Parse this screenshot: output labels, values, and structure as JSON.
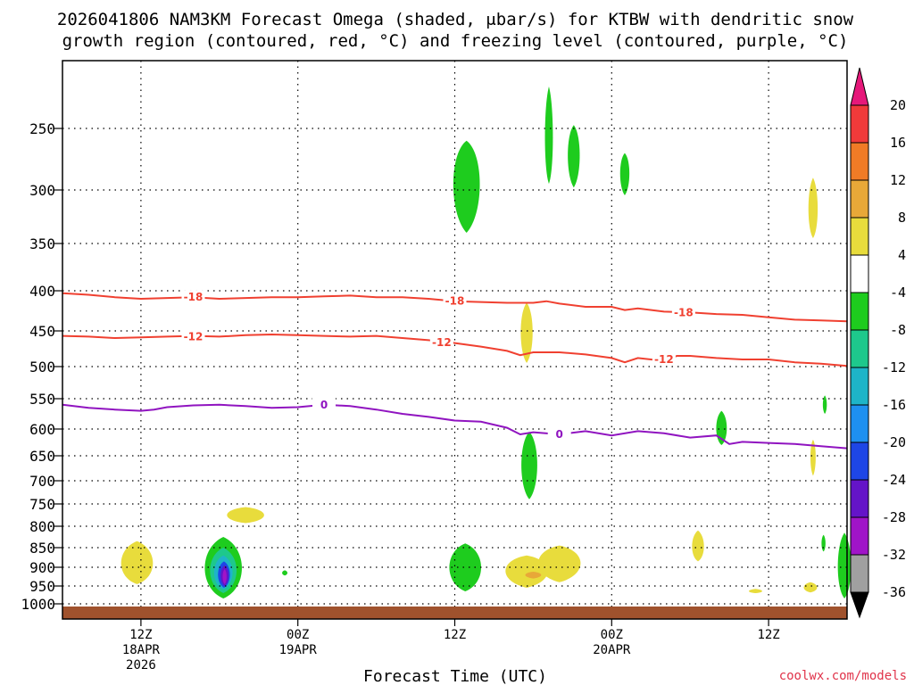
{
  "chart_data": {
    "type": "time-height cross section",
    "title_line1": "2026041806 NAM3KM Forecast Omega (shaded, μbar/s) for KTBW with dendritic snow",
    "title_line2": "growth region (contoured, red, °C) and freezing level (contoured, purple, °C)",
    "xlabel": "Forecast Time (UTC)",
    "credit": "coolwx.com/models",
    "y_ticks": [
      250,
      300,
      350,
      400,
      450,
      500,
      550,
      600,
      650,
      700,
      750,
      800,
      850,
      900,
      950,
      1000
    ],
    "x_ticks": [
      {
        "hour": 6,
        "l1": "12Z",
        "l2": "18APR",
        "l3": "2026"
      },
      {
        "hour": 18,
        "l1": "00Z",
        "l2": "19APR",
        "l3": ""
      },
      {
        "hour": 30,
        "l1": "12Z",
        "l2": "",
        "l3": ""
      },
      {
        "hour": 42,
        "l1": "00Z",
        "l2": "20APR",
        "l3": ""
      },
      {
        "hour": 54,
        "l1": "12Z",
        "l2": "",
        "l3": ""
      }
    ],
    "colorbar": {
      "labels": [
        "20",
        "16",
        "12",
        "8",
        "4",
        "-4",
        "-8",
        "-12",
        "-16",
        "-20",
        "-24",
        "-28",
        "-32",
        "-36"
      ],
      "bands": [
        {
          "lo": 16,
          "hi": 20,
          "color": "#f03a3a"
        },
        {
          "lo": 12,
          "hi": 16,
          "color": "#f07b26"
        },
        {
          "lo": 8,
          "hi": 12,
          "color": "#e8a838"
        },
        {
          "lo": 4,
          "hi": 8,
          "color": "#e8dc3c"
        },
        {
          "lo": -4,
          "hi": 4,
          "color": "#ffffff"
        },
        {
          "lo": -8,
          "hi": -4,
          "color": "#1ecc1e"
        },
        {
          "lo": -12,
          "hi": -8,
          "color": "#1ec88c"
        },
        {
          "lo": -16,
          "hi": -12,
          "color": "#1eb4c8"
        },
        {
          "lo": -20,
          "hi": -16,
          "color": "#1e90f0"
        },
        {
          "lo": -24,
          "hi": -20,
          "color": "#1e46e6"
        },
        {
          "lo": -28,
          "hi": -24,
          "color": "#6414c8"
        },
        {
          "lo": -32,
          "hi": -28,
          "color": "#a014c8"
        },
        {
          "lo": -36,
          "hi": -32,
          "color": "#a0a0a0"
        }
      ],
      "top_color": "#e6187a",
      "bottom_color": "#000000"
    },
    "contours": [
      {
        "value": "-18",
        "color": "#f04030",
        "points": [
          [
            0,
            403
          ],
          [
            2,
            405
          ],
          [
            4,
            408
          ],
          [
            6,
            410
          ],
          [
            8,
            409
          ],
          [
            10,
            408
          ],
          [
            12,
            410
          ],
          [
            14,
            409
          ],
          [
            16,
            408
          ],
          [
            18,
            408
          ],
          [
            20,
            407
          ],
          [
            22,
            406
          ],
          [
            24,
            408
          ],
          [
            26,
            408
          ],
          [
            28,
            410
          ],
          [
            30,
            413
          ],
          [
            32,
            414
          ],
          [
            34,
            415
          ],
          [
            36,
            415
          ],
          [
            37,
            413
          ],
          [
            38,
            416
          ],
          [
            40,
            420
          ],
          [
            42,
            420
          ],
          [
            43,
            424
          ],
          [
            44,
            422
          ],
          [
            46,
            426
          ],
          [
            48,
            427
          ],
          [
            50,
            429
          ],
          [
            52,
            430
          ],
          [
            54,
            433
          ],
          [
            56,
            436
          ],
          [
            58,
            437
          ],
          [
            60,
            438
          ]
        ],
        "labels": [
          [
            10,
            408
          ],
          [
            30,
            413
          ],
          [
            47.5,
            427
          ]
        ]
      },
      {
        "value": "-12",
        "color": "#f04030",
        "points": [
          [
            0,
            457
          ],
          [
            2,
            458
          ],
          [
            4,
            460
          ],
          [
            6,
            459
          ],
          [
            8,
            458
          ],
          [
            10,
            457
          ],
          [
            12,
            458
          ],
          [
            14,
            456
          ],
          [
            16,
            455
          ],
          [
            18,
            456
          ],
          [
            20,
            457
          ],
          [
            22,
            458
          ],
          [
            24,
            457
          ],
          [
            26,
            460
          ],
          [
            28,
            463
          ],
          [
            30,
            467
          ],
          [
            32,
            472
          ],
          [
            34,
            478
          ],
          [
            35,
            484
          ],
          [
            36,
            480
          ],
          [
            38,
            480
          ],
          [
            40,
            483
          ],
          [
            42,
            488
          ],
          [
            43,
            494
          ],
          [
            44,
            488
          ],
          [
            46,
            492
          ],
          [
            47,
            485
          ],
          [
            48,
            485
          ],
          [
            50,
            488
          ],
          [
            52,
            490
          ],
          [
            54,
            490
          ],
          [
            56,
            494
          ],
          [
            58,
            496
          ],
          [
            60,
            499
          ]
        ],
        "labels": [
          [
            10,
            458
          ],
          [
            29,
            466
          ],
          [
            46,
            490
          ]
        ]
      },
      {
        "value": "0",
        "color": "#9014c0",
        "points": [
          [
            0,
            560
          ],
          [
            2,
            565
          ],
          [
            4,
            568
          ],
          [
            6,
            570
          ],
          [
            7,
            568
          ],
          [
            8,
            564
          ],
          [
            10,
            561
          ],
          [
            12,
            560
          ],
          [
            14,
            562
          ],
          [
            16,
            565
          ],
          [
            18,
            564
          ],
          [
            20,
            560
          ],
          [
            22,
            562
          ],
          [
            24,
            568
          ],
          [
            26,
            575
          ],
          [
            28,
            580
          ],
          [
            30,
            586
          ],
          [
            32,
            588
          ],
          [
            34,
            598
          ],
          [
            35,
            610
          ],
          [
            36,
            606
          ],
          [
            38,
            610
          ],
          [
            40,
            604
          ],
          [
            42,
            612
          ],
          [
            44,
            604
          ],
          [
            46,
            608
          ],
          [
            48,
            616
          ],
          [
            50,
            612
          ],
          [
            51,
            628
          ],
          [
            52,
            624
          ],
          [
            54,
            626
          ],
          [
            56,
            628
          ],
          [
            58,
            632
          ],
          [
            60,
            636
          ]
        ],
        "labels": [
          [
            20,
            560
          ],
          [
            38,
            610
          ]
        ]
      }
    ],
    "omega_blobs": [
      {
        "hour": 30.9,
        "p": 290,
        "rh": 1.0,
        "pt": 260,
        "pb": 340,
        "color": "#1ecc1e"
      },
      {
        "hour": 37.2,
        "p": 262,
        "rh": 0.3,
        "pt": 225,
        "pb": 295,
        "color": "#1ecc1e"
      },
      {
        "hour": 39.1,
        "p": 270,
        "rh": 0.45,
        "pt": 248,
        "pb": 298,
        "color": "#1ecc1e"
      },
      {
        "hour": 43.0,
        "p": 285,
        "rh": 0.35,
        "pt": 270,
        "pb": 305,
        "color": "#1ecc1e"
      },
      {
        "hour": 57.4,
        "p": 320,
        "rh": 0.35,
        "pt": 290,
        "pb": 345,
        "color": "#e8dc3c"
      },
      {
        "hour": 35.5,
        "p": 450,
        "rh": 0.45,
        "pt": 415,
        "pb": 495,
        "color": "#e8dc3c"
      },
      {
        "hour": 58.3,
        "p": 560,
        "rh": 0.15,
        "pt": 545,
        "pb": 575,
        "color": "#1ecc1e"
      },
      {
        "hour": 50.4,
        "p": 600,
        "rh": 0.4,
        "pt": 570,
        "pb": 630,
        "color": "#1ecc1e"
      },
      {
        "hour": 57.4,
        "p": 650,
        "rh": 0.2,
        "pt": 620,
        "pb": 690,
        "color": "#e8dc3c"
      },
      {
        "hour": 35.7,
        "p": 665,
        "rh": 0.6,
        "pt": 605,
        "pb": 740,
        "color": "#1ecc1e"
      },
      {
        "hour": 14.0,
        "p": 775,
        "rh": 1.4,
        "pt": 757,
        "pb": 793,
        "color": "#e8dc3c"
      },
      {
        "hour": 5.7,
        "p": 893,
        "rh": 1.2,
        "pt": 835,
        "pb": 945,
        "color": "#e8dc3c"
      },
      {
        "hour": 6.0,
        "p": 885,
        "rh": 0.5,
        "pt": 840,
        "pb": 925,
        "color": "#e8dc3c"
      },
      {
        "hour": 12.3,
        "p": 905,
        "rh": 1.4,
        "pt": 825,
        "pb": 985,
        "color": "#1ecc1e"
      },
      {
        "hour": 12.3,
        "p": 910,
        "rh": 1.0,
        "pt": 850,
        "pb": 970,
        "color": "#1ec88c"
      },
      {
        "hour": 12.3,
        "p": 915,
        "rh": 0.7,
        "pt": 870,
        "pb": 960,
        "color": "#1eb4c8"
      },
      {
        "hour": 12.35,
        "p": 920,
        "rh": 0.45,
        "pt": 885,
        "pb": 955,
        "color": "#1e46e6"
      },
      {
        "hour": 12.4,
        "p": 923,
        "rh": 0.3,
        "pt": 895,
        "pb": 950,
        "color": "#6414c8"
      },
      {
        "hour": 12.4,
        "p": 925,
        "rh": 0.15,
        "pt": 905,
        "pb": 945,
        "color": "#a014c8"
      },
      {
        "hour": 17.0,
        "p": 915,
        "rh": 0.2,
        "pt": 908,
        "pb": 922,
        "color": "#1ecc1e"
      },
      {
        "hour": 30.8,
        "p": 900,
        "rh": 1.2,
        "pt": 840,
        "pb": 965,
        "color": "#1ecc1e"
      },
      {
        "hour": 35.5,
        "p": 905,
        "rh": 1.6,
        "pt": 870,
        "pb": 955,
        "color": "#e8dc3c"
      },
      {
        "hour": 38.0,
        "p": 885,
        "rh": 1.6,
        "pt": 845,
        "pb": 940,
        "color": "#e8dc3c"
      },
      {
        "hour": 36.0,
        "p": 920,
        "rh": 0.6,
        "pt": 912,
        "pb": 930,
        "color": "#e8a838"
      },
      {
        "hour": 48.6,
        "p": 850,
        "rh": 0.45,
        "pt": 810,
        "pb": 885,
        "color": "#e8dc3c"
      },
      {
        "hour": 58.2,
        "p": 840,
        "rh": 0.15,
        "pt": 820,
        "pb": 860,
        "color": "#1ecc1e"
      },
      {
        "hour": 59.8,
        "p": 905,
        "rh": 0.5,
        "pt": 815,
        "pb": 985,
        "color": "#1ecc1e"
      },
      {
        "hour": 57.2,
        "p": 955,
        "rh": 0.5,
        "pt": 940,
        "pb": 968,
        "color": "#e8dc3c"
      },
      {
        "hour": 53.0,
        "p": 965,
        "rh": 0.5,
        "pt": 958,
        "pb": 970,
        "color": "#e8dc3c"
      }
    ],
    "terrain_color": "#a0522d"
  }
}
